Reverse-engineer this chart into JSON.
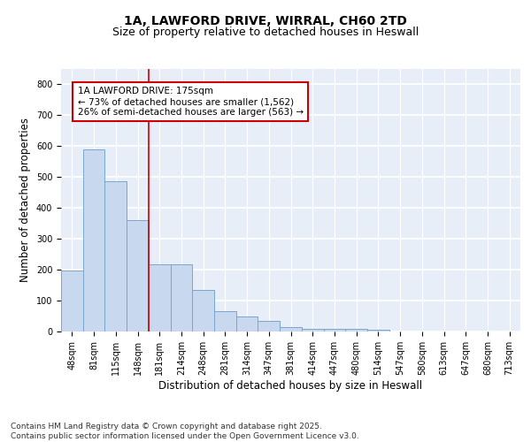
{
  "title_line1": "1A, LAWFORD DRIVE, WIRRAL, CH60 2TD",
  "title_line2": "Size of property relative to detached houses in Heswall",
  "xlabel": "Distribution of detached houses by size in Heswall",
  "ylabel": "Number of detached properties",
  "categories": [
    "48sqm",
    "81sqm",
    "115sqm",
    "148sqm",
    "181sqm",
    "214sqm",
    "248sqm",
    "281sqm",
    "314sqm",
    "347sqm",
    "381sqm",
    "414sqm",
    "447sqm",
    "480sqm",
    "514sqm",
    "547sqm",
    "580sqm",
    "613sqm",
    "647sqm",
    "680sqm",
    "713sqm"
  ],
  "values": [
    196,
    588,
    487,
    360,
    218,
    218,
    133,
    65,
    48,
    35,
    14,
    8,
    10,
    10,
    7,
    0,
    0,
    0,
    0,
    0,
    0
  ],
  "bar_color": "#c8d8ee",
  "bar_edge_color": "#7ba7cc",
  "bar_edge_width": 0.7,
  "vline_color": "#cc0000",
  "vline_x": 3.5,
  "annotation_text": "1A LAWFORD DRIVE: 175sqm\n← 73% of detached houses are smaller (1,562)\n26% of semi-detached houses are larger (563) →",
  "box_color": "#ffffff",
  "box_edge_color": "#cc0000",
  "ylim": [
    0,
    850
  ],
  "yticks": [
    0,
    100,
    200,
    300,
    400,
    500,
    600,
    700,
    800
  ],
  "background_color": "#e8eef8",
  "grid_color": "#ffffff",
  "footer_text": "Contains HM Land Registry data © Crown copyright and database right 2025.\nContains public sector information licensed under the Open Government Licence v3.0.",
  "title_fontsize": 10,
  "subtitle_fontsize": 9,
  "xlabel_fontsize": 8.5,
  "ylabel_fontsize": 8.5,
  "tick_fontsize": 7,
  "annotation_fontsize": 7.5,
  "footer_fontsize": 6.5
}
